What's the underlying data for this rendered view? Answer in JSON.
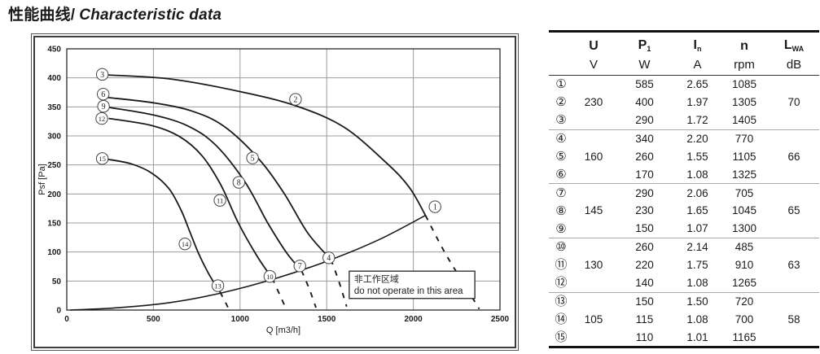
{
  "page": {
    "title_zh": "性能曲线/",
    "title_en": "Characteristic data"
  },
  "table": {
    "columns": [
      {
        "symbol": "U",
        "sub": "",
        "unit": "V"
      },
      {
        "symbol": "P",
        "sub": "1",
        "unit": "W"
      },
      {
        "symbol": "I",
        "sub": "n",
        "unit": "A"
      },
      {
        "symbol": "n",
        "sub": "",
        "unit": "rpm"
      },
      {
        "symbol": "L",
        "sub": "WA",
        "unit": "dB"
      }
    ],
    "rows": [
      {
        "num": "①",
        "values": [
          "",
          "585",
          "2.65",
          "1085",
          ""
        ]
      },
      {
        "num": "②",
        "values": [
          "230",
          "400",
          "1.97",
          "1305",
          "70"
        ]
      },
      {
        "num": "③",
        "values": [
          "",
          "290",
          "1.72",
          "1405",
          ""
        ]
      },
      {
        "num": "④",
        "values": [
          "",
          "340",
          "2.20",
          "770",
          ""
        ]
      },
      {
        "num": "⑤",
        "values": [
          "160",
          "260",
          "1.55",
          "1105",
          "66"
        ]
      },
      {
        "num": "⑥",
        "values": [
          "",
          "170",
          "1.08",
          "1325",
          ""
        ]
      },
      {
        "num": "⑦",
        "values": [
          "",
          "290",
          "2.06",
          "705",
          ""
        ]
      },
      {
        "num": "⑧",
        "values": [
          "145",
          "230",
          "1.65",
          "1045",
          "65"
        ]
      },
      {
        "num": "⑨",
        "values": [
          "",
          "150",
          "1.07",
          "1300",
          ""
        ]
      },
      {
        "num": "⑩",
        "values": [
          "",
          "260",
          "2.14",
          "485",
          ""
        ]
      },
      {
        "num": "⑪",
        "values": [
          "130",
          "220",
          "1.75",
          "910",
          "63"
        ]
      },
      {
        "num": "⑫",
        "values": [
          "",
          "140",
          "1.08",
          "1265",
          ""
        ]
      },
      {
        "num": "⑬",
        "values": [
          "",
          "150",
          "1.50",
          "720",
          ""
        ]
      },
      {
        "num": "⑭",
        "values": [
          "105",
          "115",
          "1.08",
          "700",
          "58"
        ]
      },
      {
        "num": "⑮",
        "values": [
          "",
          "110",
          "1.01",
          "1165",
          ""
        ]
      }
    ],
    "group_separators_after": [
      3,
      6,
      9,
      12
    ]
  },
  "chart_data": {
    "type": "line",
    "title": "",
    "xlabel": "Q [m3/h]",
    "ylabel": "Psf [Pa]",
    "xlim": [
      0,
      2500
    ],
    "ylim": [
      0,
      450
    ],
    "xticks": [
      0,
      500,
      1000,
      1500,
      2000,
      2500
    ],
    "yticks": [
      0,
      50,
      100,
      150,
      200,
      250,
      300,
      350,
      400,
      450
    ],
    "grid": true,
    "series": [
      {
        "name": "230V-curve-points-3-2-1",
        "solid": [
          [
            235,
            405
          ],
          [
            600,
            398
          ],
          [
            990,
            377
          ],
          [
            1320,
            352
          ],
          [
            1600,
            315
          ],
          [
            1850,
            252
          ],
          [
            1980,
            210
          ],
          [
            2070,
            163
          ]
        ],
        "dashed": [
          [
            2070,
            163
          ],
          [
            2180,
            100
          ],
          [
            2290,
            46
          ],
          [
            2380,
            2
          ]
        ]
      },
      {
        "name": "160V-curve-points-6-5-4",
        "solid": [
          [
            240,
            366
          ],
          [
            500,
            357
          ],
          [
            720,
            343
          ],
          [
            905,
            317
          ],
          [
            1100,
            263
          ],
          [
            1250,
            203
          ],
          [
            1390,
            133
          ],
          [
            1525,
            87
          ]
        ],
        "dashed": [
          [
            1525,
            87
          ],
          [
            1572,
            48
          ],
          [
            1615,
            6
          ]
        ]
      },
      {
        "name": "145V-curve-points-9-8-7",
        "solid": [
          [
            245,
            349
          ],
          [
            500,
            336
          ],
          [
            700,
            317
          ],
          [
            860,
            284
          ],
          [
            1030,
            220
          ],
          [
            1160,
            150
          ],
          [
            1270,
            98
          ],
          [
            1355,
            68
          ]
        ],
        "dashed": [
          [
            1355,
            68
          ],
          [
            1400,
            36
          ],
          [
            1438,
            4
          ]
        ]
      },
      {
        "name": "130V-curve-points-12-11-10",
        "solid": [
          [
            245,
            330
          ],
          [
            490,
            318
          ],
          [
            650,
            299
          ],
          [
            780,
            266
          ],
          [
            890,
            215
          ],
          [
            990,
            150
          ],
          [
            1100,
            92
          ],
          [
            1185,
            55
          ]
        ],
        "dashed": [
          [
            1185,
            55
          ],
          [
            1230,
            26
          ],
          [
            1264,
            3
          ]
        ]
      },
      {
        "name": "105V-curve-points-15-14-13",
        "solid": [
          [
            230,
            260
          ],
          [
            370,
            252
          ],
          [
            490,
            236
          ],
          [
            590,
            209
          ],
          [
            660,
            172
          ],
          [
            710,
            135
          ],
          [
            760,
            98
          ],
          [
            820,
            62
          ],
          [
            885,
            31
          ]
        ],
        "dashed": [
          [
            885,
            31
          ],
          [
            913,
            15
          ],
          [
            934,
            2
          ]
        ]
      }
    ],
    "boundary": [
      [
        20,
        0
      ],
      [
        300,
        4
      ],
      [
        600,
        13
      ],
      [
        900,
        30
      ],
      [
        1200,
        54
      ],
      [
        1500,
        84
      ],
      [
        1800,
        121
      ],
      [
        2070,
        163
      ]
    ],
    "curve_labels": [
      {
        "n": "1",
        "q": 2125,
        "p": 178
      },
      {
        "n": "2",
        "q": 1320,
        "p": 363
      },
      {
        "n": "3",
        "q": 205,
        "p": 406
      },
      {
        "n": "4",
        "q": 1512,
        "p": 90
      },
      {
        "n": "5",
        "q": 1072,
        "p": 262
      },
      {
        "n": "6",
        "q": 210,
        "p": 372
      },
      {
        "n": "7",
        "q": 1345,
        "p": 76
      },
      {
        "n": "8",
        "q": 993,
        "p": 220
      },
      {
        "n": "9",
        "q": 212,
        "p": 351
      },
      {
        "n": "10",
        "q": 1172,
        "p": 58
      },
      {
        "n": "11",
        "q": 884,
        "p": 189
      },
      {
        "n": "12",
        "q": 202,
        "p": 330
      },
      {
        "n": "13",
        "q": 872,
        "p": 42
      },
      {
        "n": "14",
        "q": 682,
        "p": 114
      },
      {
        "n": "15",
        "q": 205,
        "p": 261
      }
    ],
    "annotation": {
      "line1": "非工作区域",
      "line2": "do not operate in this area",
      "box_q": [
        1630,
        2355
      ],
      "box_p": [
        20,
        67
      ]
    },
    "colors": {
      "curve": "#1a1a1a",
      "grid": "#9c9c9c",
      "frame": "#2b2b2b",
      "label_circle": "#444444"
    }
  }
}
